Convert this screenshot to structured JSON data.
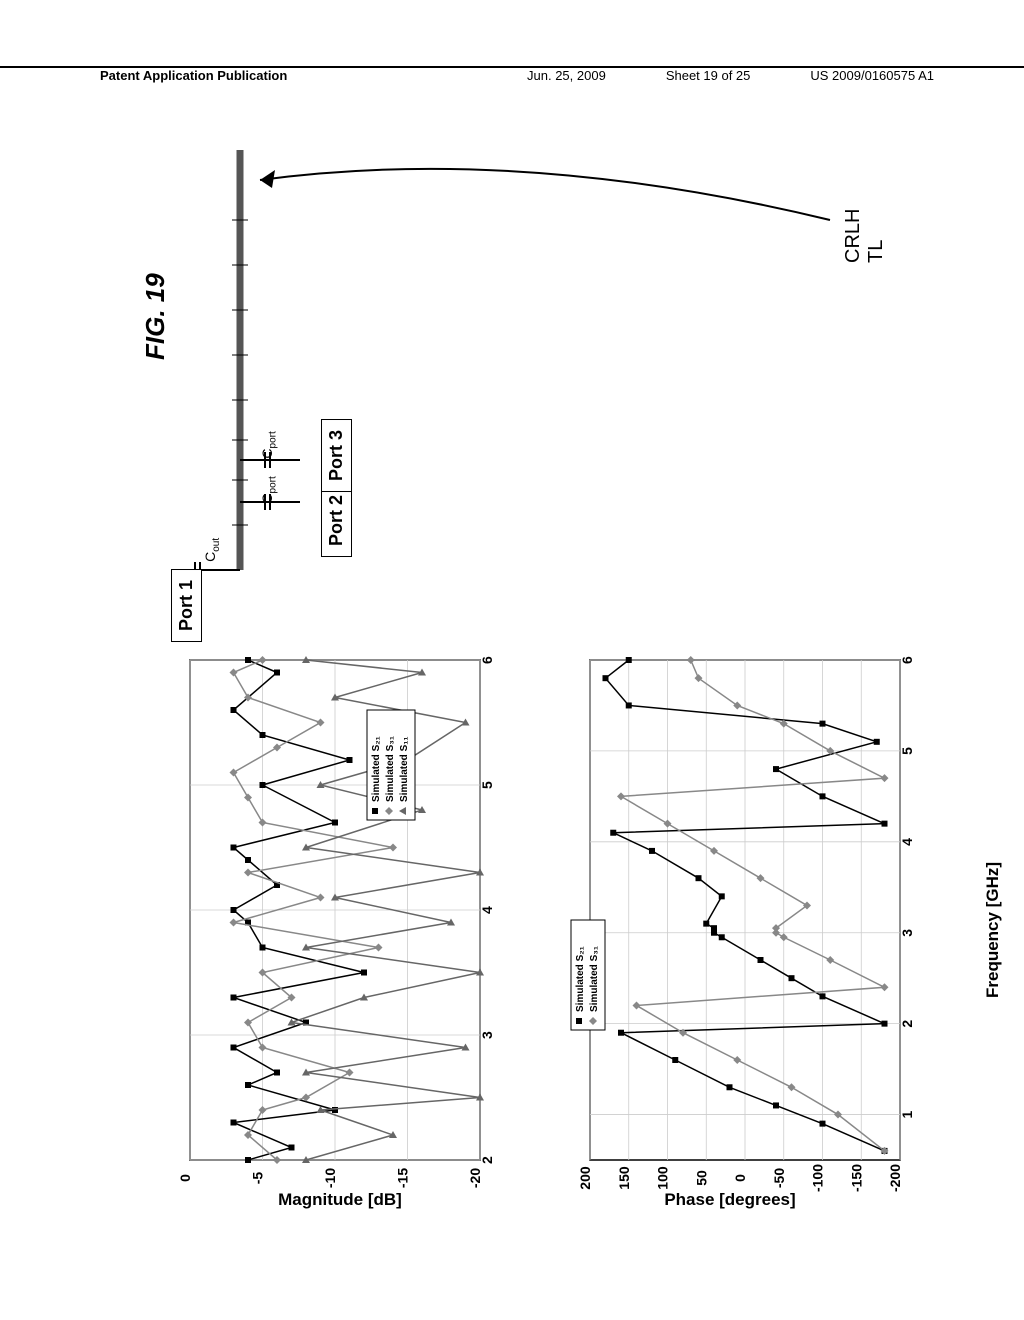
{
  "header": {
    "left": "Patent Application Publication",
    "date": "Jun. 25, 2009",
    "sheet": "Sheet 19 of 25",
    "pubno": "US 2009/0160575 A1"
  },
  "figure_label": "FIG. 19",
  "schematic": {
    "crlh_label": "CRLH TL",
    "port1": "Port 1",
    "port2": "Port 2",
    "port3": "Port 3",
    "c_out": "C",
    "c_out_sub": "out",
    "c_port": "C",
    "c_port_sub": "port"
  },
  "chart_mag": {
    "ylabel": "Magnitude [dB]",
    "xlabel": "Frequency [GHz]",
    "yticks": [
      "0",
      "-5",
      "-10",
      "-15",
      "-20"
    ],
    "xticks": [
      "2",
      "3",
      "4",
      "5",
      "6"
    ],
    "ylim": [
      -20,
      0
    ],
    "xlim": [
      2,
      6
    ],
    "legend": [
      "Simulated S₂₁",
      "Simulated S₃₁",
      "Simulated S₁₁"
    ],
    "series_colors": [
      "#000000",
      "#888888",
      "#666666"
    ],
    "s21": [
      [
        2.0,
        -4
      ],
      [
        2.1,
        -7
      ],
      [
        2.3,
        -3
      ],
      [
        2.4,
        -10
      ],
      [
        2.6,
        -4
      ],
      [
        2.7,
        -6
      ],
      [
        2.9,
        -3
      ],
      [
        3.1,
        -8
      ],
      [
        3.3,
        -3
      ],
      [
        3.5,
        -12
      ],
      [
        3.7,
        -5
      ],
      [
        3.9,
        -4
      ],
      [
        4.0,
        -3
      ],
      [
        4.2,
        -6
      ],
      [
        4.4,
        -4
      ],
      [
        4.5,
        -3
      ],
      [
        4.7,
        -10
      ],
      [
        5.0,
        -5
      ],
      [
        5.2,
        -11
      ],
      [
        5.4,
        -5
      ],
      [
        5.6,
        -3
      ],
      [
        5.9,
        -6
      ],
      [
        6.0,
        -4
      ]
    ],
    "s31": [
      [
        2.0,
        -6
      ],
      [
        2.2,
        -4
      ],
      [
        2.4,
        -5
      ],
      [
        2.5,
        -8
      ],
      [
        2.7,
        -11
      ],
      [
        2.9,
        -5
      ],
      [
        3.1,
        -4
      ],
      [
        3.3,
        -7
      ],
      [
        3.5,
        -5
      ],
      [
        3.7,
        -13
      ],
      [
        3.9,
        -3
      ],
      [
        4.1,
        -9
      ],
      [
        4.3,
        -4
      ],
      [
        4.5,
        -14
      ],
      [
        4.7,
        -5
      ],
      [
        4.9,
        -4
      ],
      [
        5.1,
        -3
      ],
      [
        5.3,
        -6
      ],
      [
        5.5,
        -9
      ],
      [
        5.7,
        -4
      ],
      [
        5.9,
        -3
      ],
      [
        6.0,
        -5
      ]
    ],
    "s11": [
      [
        2.0,
        -8
      ],
      [
        2.2,
        -14
      ],
      [
        2.4,
        -9
      ],
      [
        2.5,
        -20
      ],
      [
        2.7,
        -8
      ],
      [
        2.9,
        -19
      ],
      [
        3.1,
        -7
      ],
      [
        3.3,
        -12
      ],
      [
        3.5,
        -20
      ],
      [
        3.7,
        -8
      ],
      [
        3.9,
        -18
      ],
      [
        4.1,
        -10
      ],
      [
        4.3,
        -20
      ],
      [
        4.5,
        -8
      ],
      [
        4.8,
        -16
      ],
      [
        5.0,
        -9
      ],
      [
        5.2,
        -15
      ],
      [
        5.5,
        -19
      ],
      [
        5.7,
        -10
      ],
      [
        5.9,
        -16
      ],
      [
        6.0,
        -8
      ]
    ]
  },
  "chart_phase": {
    "ylabel": "Phase [degrees]",
    "xlabel": "Frequency [GHz]",
    "yticks": [
      "200",
      "150",
      "100",
      "50",
      "0",
      "-50",
      "-100",
      "-150",
      "-200"
    ],
    "xticks": [
      "1",
      "2",
      "3",
      "4",
      "5",
      "6"
    ],
    "ylim": [
      -200,
      200
    ],
    "xlim": [
      0.5,
      6
    ],
    "legend": [
      "Simulated S₂₁",
      "Simulated S₃₁"
    ],
    "series_colors": [
      "#000000",
      "#888888"
    ],
    "s21": [
      [
        0.6,
        -180
      ],
      [
        0.9,
        -100
      ],
      [
        1.1,
        -40
      ],
      [
        1.3,
        20
      ],
      [
        1.6,
        90
      ],
      [
        1.9,
        160
      ],
      [
        2.0,
        -180
      ],
      [
        2.3,
        -100
      ],
      [
        2.5,
        -60
      ],
      [
        2.7,
        -20
      ],
      [
        2.95,
        30
      ],
      [
        3.0,
        40
      ],
      [
        3.05,
        40
      ],
      [
        3.1,
        50
      ],
      [
        3.4,
        30
      ],
      [
        3.6,
        60
      ],
      [
        3.9,
        120
      ],
      [
        4.1,
        170
      ],
      [
        4.2,
        -180
      ],
      [
        4.5,
        -100
      ],
      [
        4.8,
        -40
      ],
      [
        5.1,
        -170
      ],
      [
        5.3,
        -100
      ],
      [
        5.5,
        150
      ],
      [
        5.8,
        180
      ],
      [
        6.0,
        150
      ]
    ],
    "s31": [
      [
        0.6,
        -180
      ],
      [
        1.0,
        -120
      ],
      [
        1.3,
        -60
      ],
      [
        1.6,
        10
      ],
      [
        1.9,
        80
      ],
      [
        2.2,
        140
      ],
      [
        2.4,
        -180
      ],
      [
        2.7,
        -110
      ],
      [
        2.95,
        -50
      ],
      [
        3.0,
        -40
      ],
      [
        3.05,
        -40
      ],
      [
        3.3,
        -80
      ],
      [
        3.6,
        -20
      ],
      [
        3.9,
        40
      ],
      [
        4.2,
        100
      ],
      [
        4.5,
        160
      ],
      [
        4.7,
        -180
      ],
      [
        5.0,
        -110
      ],
      [
        5.3,
        -50
      ],
      [
        5.5,
        10
      ],
      [
        5.8,
        60
      ],
      [
        6.0,
        70
      ]
    ]
  },
  "colors": {
    "background": "#ffffff",
    "grid": "#cccccc",
    "axis": "#000000"
  }
}
